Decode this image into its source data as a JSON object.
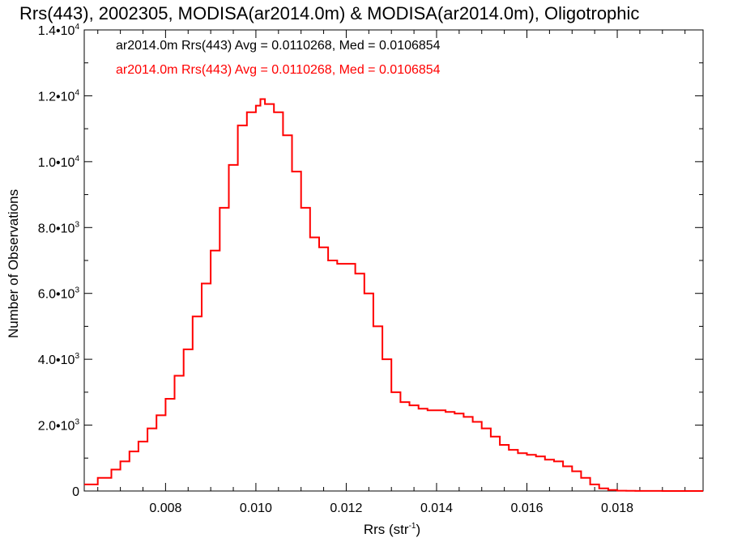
{
  "chart_data": {
    "type": "line",
    "title": "Rrs(443), 2002305, MODISA(ar2014.0m) & MODISA(ar2014.0m), Oligotrophic",
    "xlabel_base": "Rrs (str",
    "xlabel_sup": "-1",
    "xlabel_close": ")",
    "ylabel": "Number of Observations",
    "xlim": [
      0.0062,
      0.0199
    ],
    "ylim": [
      0,
      14000
    ],
    "x_ticks": [
      {
        "value": 0.008,
        "label": "0.008"
      },
      {
        "value": 0.01,
        "label": "0.010"
      },
      {
        "value": 0.012,
        "label": "0.012"
      },
      {
        "value": 0.014,
        "label": "0.014"
      },
      {
        "value": 0.016,
        "label": "0.016"
      },
      {
        "value": 0.018,
        "label": "0.018"
      }
    ],
    "y_ticks": [
      {
        "value": 0,
        "mant": "0",
        "exp": ""
      },
      {
        "value": 2000,
        "mant": "2.0•10",
        "exp": "3"
      },
      {
        "value": 4000,
        "mant": "4.0•10",
        "exp": "3"
      },
      {
        "value": 6000,
        "mant": "6.0•10",
        "exp": "3"
      },
      {
        "value": 8000,
        "mant": "8.0•10",
        "exp": "3"
      },
      {
        "value": 10000,
        "mant": "1.0•10",
        "exp": "4"
      },
      {
        "value": 12000,
        "mant": "1.2•10",
        "exp": "4"
      },
      {
        "value": 14000,
        "mant": "1.4•10",
        "exp": "4"
      }
    ],
    "legend": [
      {
        "text": "ar2014.0m Rrs(443) Avg = 0.0110268, Med = 0.0106854",
        "color": "#000000"
      },
      {
        "text": "ar2014.0m Rrs(443) Avg = 0.0110268, Med = 0.0106854",
        "color": "#ff0000"
      }
    ],
    "series": [
      {
        "color": "#ff0000",
        "x": [
          0.0062,
          0.0065,
          0.0068,
          0.007,
          0.0072,
          0.0074,
          0.0076,
          0.0078,
          0.008,
          0.0082,
          0.0084,
          0.0086,
          0.0088,
          0.009,
          0.0092,
          0.0094,
          0.0096,
          0.0098,
          0.01,
          0.0101,
          0.0102,
          0.0104,
          0.0106,
          0.0108,
          0.011,
          0.0112,
          0.0114,
          0.0116,
          0.0118,
          0.012,
          0.0122,
          0.0124,
          0.0126,
          0.0128,
          0.013,
          0.0132,
          0.0134,
          0.0136,
          0.0138,
          0.014,
          0.0142,
          0.0144,
          0.0146,
          0.0148,
          0.015,
          0.0152,
          0.0154,
          0.0156,
          0.0158,
          0.016,
          0.0162,
          0.0164,
          0.0166,
          0.0168,
          0.017,
          0.0172,
          0.0174,
          0.0176,
          0.0178,
          0.018,
          0.0182,
          0.0184,
          0.019,
          0.0199
        ],
        "y": [
          200,
          400,
          650,
          900,
          1200,
          1500,
          1900,
          2300,
          2800,
          3500,
          4300,
          5300,
          6300,
          7300,
          8600,
          9900,
          11100,
          11500,
          11700,
          11900,
          11750,
          11500,
          10800,
          9700,
          8600,
          7700,
          7400,
          7000,
          6900,
          6900,
          6600,
          6000,
          5000,
          4000,
          3000,
          2700,
          2600,
          2500,
          2450,
          2450,
          2400,
          2350,
          2250,
          2100,
          1900,
          1650,
          1400,
          1250,
          1150,
          1100,
          1050,
          950,
          900,
          750,
          600,
          400,
          200,
          80,
          30,
          10,
          5,
          2,
          0,
          0
        ]
      }
    ]
  }
}
